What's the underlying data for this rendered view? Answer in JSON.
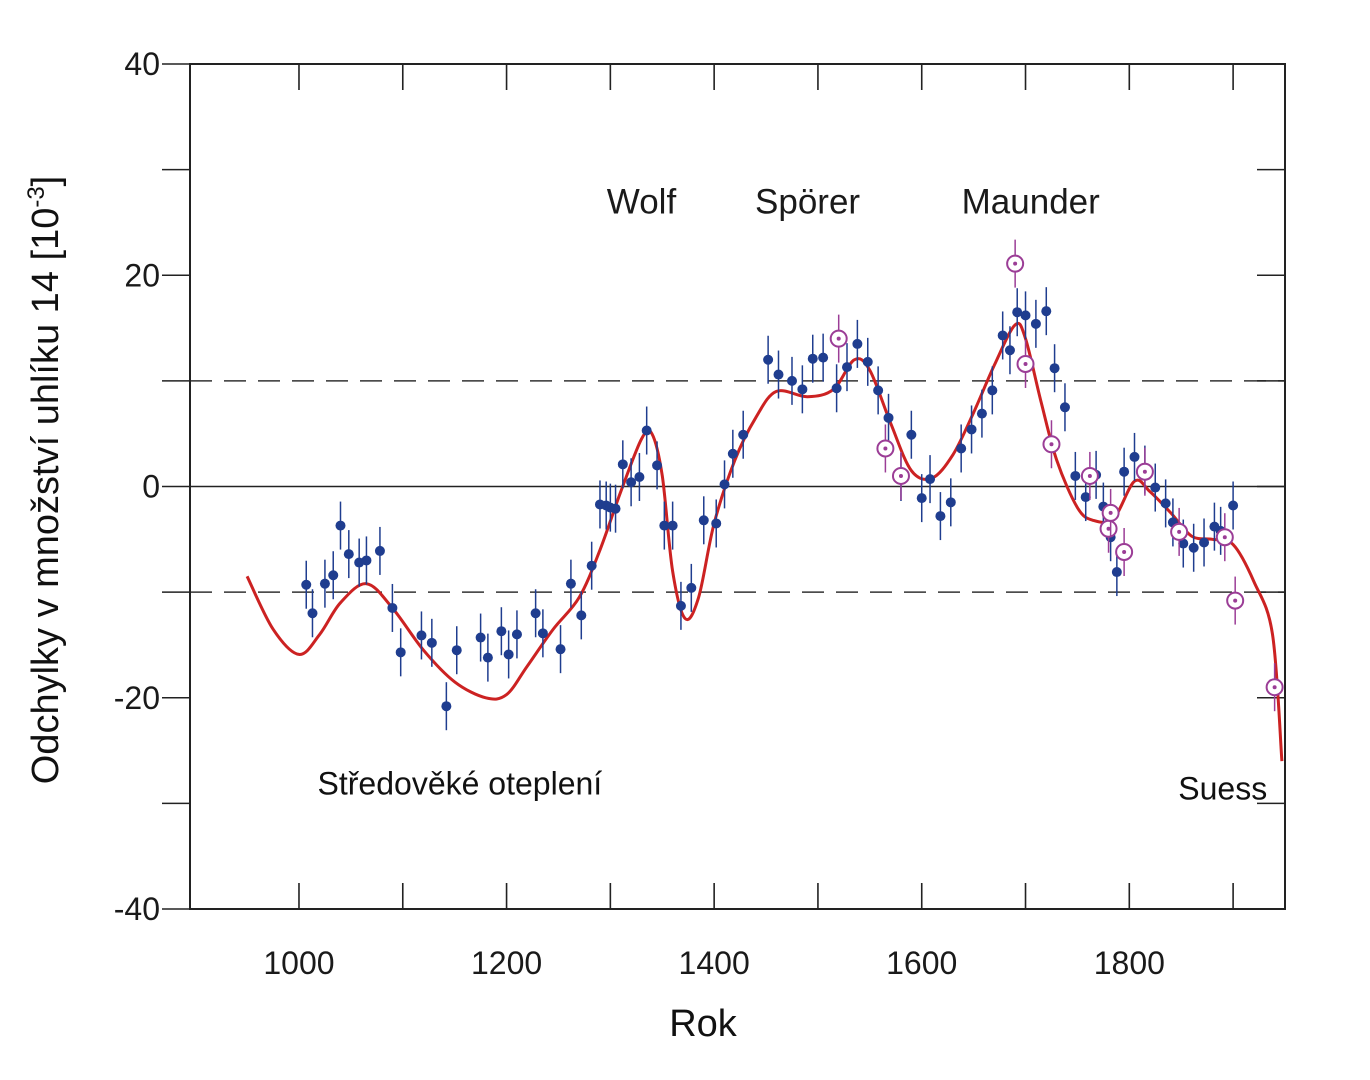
{
  "chart_data": {
    "type": "scatter",
    "title": "",
    "xlabel": "Rok",
    "ylabel": "Odchylky v množství uhlíku 14 [10",
    "ylabel_exponent": "-3",
    "ylabel_close": "]",
    "xlim": [
      895,
      1950
    ],
    "ylim": [
      -40,
      40
    ],
    "xticks": [
      1000,
      1200,
      1400,
      1600,
      1800
    ],
    "yticks": [
      -40,
      -20,
      0,
      20,
      40
    ],
    "dashed_reference_lines": [
      -10,
      10
    ],
    "solid_reference_line": 0,
    "annotations": [
      {
        "text": "Wolf",
        "x": 1330,
        "y": 27
      },
      {
        "text": "Spörer",
        "x": 1490,
        "y": 27
      },
      {
        "text": "Maunder",
        "x": 1705,
        "y": 27
      },
      {
        "text": "Středověké oteplení",
        "x": 1155,
        "y": -28
      },
      {
        "text": "Suess",
        "x": 1890,
        "y": -28.5
      }
    ],
    "colors": {
      "points": "#1f3d8f",
      "open_points": "#9b3d96",
      "curve": "#cc2222",
      "axes": "#222222"
    },
    "series": [
      {
        "name": "",
        "marker": "filled-circle",
        "x": [
          1007,
          1013,
          1025,
          1033,
          1040,
          1048,
          1058,
          1065,
          1078,
          1090,
          1098,
          1118,
          1128,
          1142,
          1152,
          1175,
          1182,
          1195,
          1202,
          1210,
          1228,
          1235,
          1252,
          1262,
          1272,
          1282,
          1290,
          1296,
          1300,
          1305,
          1312,
          1320,
          1328,
          1335,
          1345,
          1352,
          1360,
          1368,
          1378,
          1390,
          1402,
          1410,
          1418,
          1428,
          1452,
          1462,
          1475,
          1485,
          1495,
          1505,
          1518,
          1528,
          1538,
          1548,
          1558,
          1568,
          1580,
          1590,
          1600,
          1608,
          1618,
          1628,
          1638,
          1648,
          1658,
          1668,
          1678,
          1685,
          1692,
          1700,
          1710,
          1720,
          1728,
          1738,
          1748,
          1758,
          1768,
          1775,
          1782,
          1788,
          1795,
          1805,
          1815,
          1825,
          1835,
          1842,
          1852,
          1862,
          1872,
          1882,
          1888,
          1900
        ],
        "y": [
          -9.3,
          -12,
          -9.2,
          -8.4,
          -3.7,
          -6.4,
          -7.2,
          -7,
          -6.1,
          -11.5,
          -15.7,
          -14.1,
          -14.8,
          -20.8,
          -15.5,
          -14.3,
          -16.2,
          -13.7,
          -15.9,
          -14,
          -12,
          -13.9,
          -15.4,
          -9.2,
          -12.2,
          -7.5,
          -1.7,
          -1.8,
          -2,
          -2.1,
          2.1,
          0.4,
          0.9,
          5.3,
          2,
          -3.7,
          -3.7,
          -11.3,
          -9.6,
          -3.2,
          -3.5,
          0.2,
          3.1,
          4.9,
          12,
          10.6,
          10,
          9.2,
          12.1,
          12.2,
          9.3,
          11.3,
          13.5,
          11.8,
          9.1,
          6.5,
          0.9,
          4.9,
          -1.1,
          0.7,
          -2.8,
          -1.5,
          3.6,
          5.4,
          6.9,
          9.1,
          14.3,
          12.9,
          16.5,
          16.2,
          15.4,
          16.6,
          11.2,
          7.5,
          1,
          -1,
          1.1,
          -1.9,
          -4.8,
          -8.1,
          1.4,
          2.8,
          1.6,
          -0.1,
          -1.6,
          -3.4,
          -5.4,
          -5.8,
          -5.3,
          -3.8,
          -4.2,
          -1.8
        ]
      },
      {
        "name": "",
        "marker": "open-circle",
        "x": [
          1520,
          1565,
          1580,
          1690,
          1700,
          1725,
          1762,
          1780,
          1782,
          1795,
          1815,
          1848,
          1892,
          1902,
          1940
        ],
        "y": [
          14,
          3.6,
          1,
          21.1,
          11.6,
          4,
          1,
          -4,
          -2.5,
          -6.2,
          1.4,
          -4.3,
          -4.8,
          -10.8,
          -19
        ]
      },
      {
        "name": "",
        "marker": "line",
        "x": [
          950,
          975,
          1000,
          1020,
          1040,
          1065,
          1090,
          1120,
          1150,
          1180,
          1200,
          1220,
          1245,
          1270,
          1290,
          1310,
          1330,
          1340,
          1350,
          1360,
          1372,
          1385,
          1400,
          1420,
          1440,
          1460,
          1490,
          1515,
          1535,
          1550,
          1570,
          1590,
          1610,
          1630,
          1650,
          1670,
          1690,
          1700,
          1715,
          1730,
          1750,
          1765,
          1785,
          1805,
          1820,
          1840,
          1860,
          1880,
          1900,
          1920,
          1938,
          1947
        ],
        "y": [
          -8.5,
          -13.5,
          -15.9,
          -14,
          -11,
          -9.2,
          -11.5,
          -15.5,
          -18.5,
          -20,
          -19.7,
          -17,
          -13.5,
          -10.5,
          -6,
          -0.5,
          4.5,
          5,
          1,
          -8,
          -12.5,
          -10.5,
          -3.5,
          2.5,
          6.5,
          9,
          8.5,
          9.2,
          12,
          11,
          6,
          1.5,
          0.8,
          3,
          7,
          11.5,
          15.3,
          14,
          8,
          2.5,
          -2,
          -3.2,
          -3,
          0.5,
          -0.5,
          -2.5,
          -4.7,
          -5,
          -5.5,
          -9,
          -14,
          -26
        ]
      }
    ]
  }
}
